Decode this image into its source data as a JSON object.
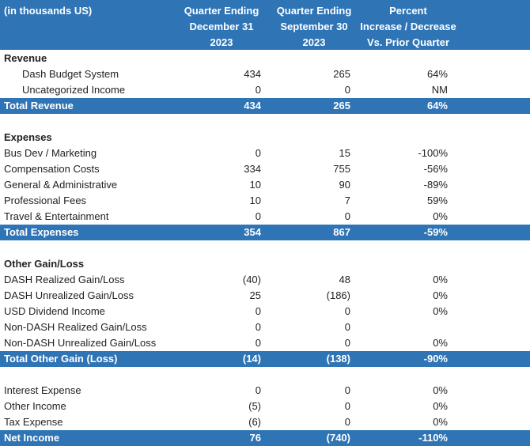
{
  "header": {
    "label": "(in thousands US)",
    "col1": [
      "Quarter Ending",
      "December 31",
      "2023"
    ],
    "col2": [
      "Quarter Ending",
      "September 30",
      "2023"
    ],
    "col3": [
      "Percent",
      "Increase / Decrease",
      "Vs. Prior Quarter"
    ]
  },
  "revenue": {
    "title": "Revenue",
    "rows": [
      {
        "label": "Dash Budget System",
        "q4": "434",
        "q3": "265",
        "pct": "64%"
      },
      {
        "label": "Uncategorized Income",
        "q4": "0",
        "q3": "0",
        "pct": "NM"
      }
    ],
    "total": {
      "label": "Total Revenue",
      "q4": "434",
      "q3": "265",
      "pct": "64%"
    }
  },
  "expenses": {
    "title": "Expenses",
    "rows": [
      {
        "label": "Bus Dev / Marketing",
        "q4": "0",
        "q3": "15",
        "pct": "-100%"
      },
      {
        "label": "Compensation Costs",
        "q4": "334",
        "q3": "755",
        "pct": "-56%"
      },
      {
        "label": "General & Administrative",
        "q4": "10",
        "q3": "90",
        "pct": "-89%"
      },
      {
        "label": "Professional Fees",
        "q4": "10",
        "q3": "7",
        "pct": "59%"
      },
      {
        "label": "Travel & Entertainment",
        "q4": "0",
        "q3": "0",
        "pct": "0%"
      }
    ],
    "total": {
      "label": "Total Expenses",
      "q4": "354",
      "q3": "867",
      "pct": "-59%"
    }
  },
  "other": {
    "title": "Other Gain/Loss",
    "rows": [
      {
        "label": "DASH Realized Gain/Loss",
        "q4": "(40)",
        "q3": "48",
        "pct": "0%"
      },
      {
        "label": "DASH Unrealized Gain/Loss",
        "q4": "25",
        "q3": "(186)",
        "pct": "0%"
      },
      {
        "label": "USD Dividend Income",
        "q4": "0",
        "q3": "0",
        "pct": "0%"
      },
      {
        "label": "Non-DASH Realized Gain/Loss",
        "q4": "0",
        "q3": "0",
        "pct": ""
      },
      {
        "label": "Non-DASH Unrealized Gain/Loss",
        "q4": "0",
        "q3": "0",
        "pct": "0%"
      }
    ],
    "total": {
      "label": "Total Other Gain (Loss)",
      "q4": "(14)",
      "q3": "(138)",
      "pct": "-90%"
    }
  },
  "misc": {
    "rows": [
      {
        "label": "Interest Expense",
        "q4": "0",
        "q3": "0",
        "pct": "0%"
      },
      {
        "label": "Other Income",
        "q4": "(5)",
        "q3": "0",
        "pct": "0%"
      },
      {
        "label": "Tax Expense",
        "q4": "(6)",
        "q3": "0",
        "pct": "0%"
      }
    ],
    "total": {
      "label": "Net Income",
      "q4": "76",
      "q3": "(740)",
      "pct": "-110%"
    }
  },
  "colors": {
    "header_bg": "#2f74b5",
    "header_text": "#ffffff"
  }
}
